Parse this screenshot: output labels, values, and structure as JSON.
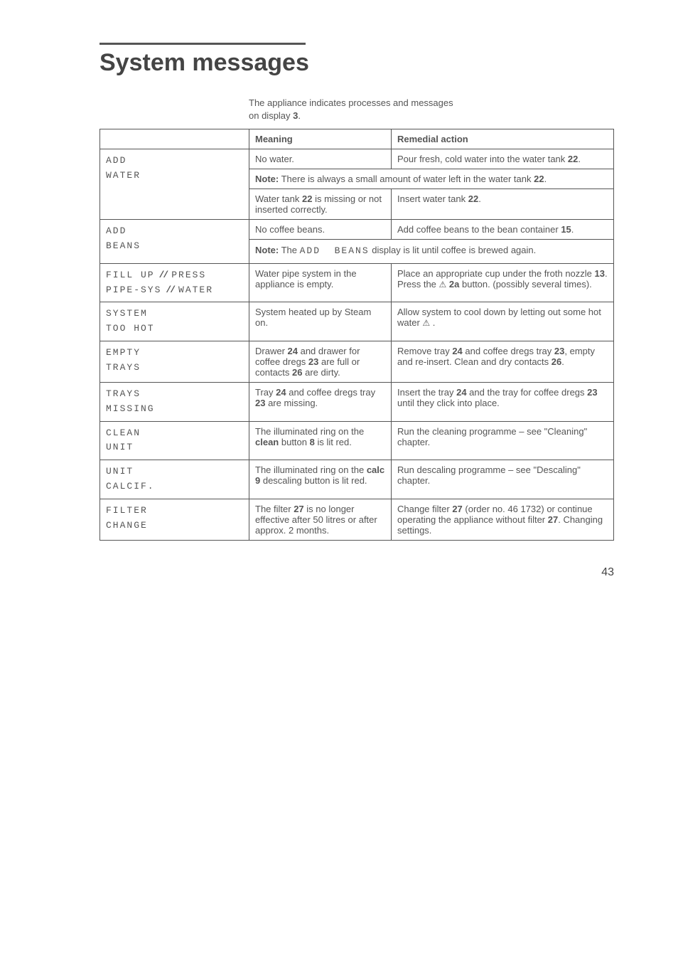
{
  "title": "System messages",
  "intro_line1": "The appliance indicates processes and messages",
  "intro_line2": "on display 3.",
  "headers": {
    "meaning": "Meaning",
    "remedial": "Remedial action"
  },
  "rows": {
    "add_water": {
      "label_l1": "ADD",
      "label_l2": "WATER",
      "r1_meaning": "No water.",
      "r1_remedial": "Pour fresh, cold water into the water tank 22.",
      "note": "Note: There is always a small amount of water left in the water tank 22.",
      "r2_meaning": "Water tank 22 is missing or not inserted correctly.",
      "r2_remedial": "Insert water tank 22."
    },
    "add_beans": {
      "label_l1": "ADD",
      "label_l2": "BEANS",
      "r1_meaning": "No coffee beans.",
      "r1_remedial": "Add coffee beans to the bean container 15.",
      "note_pre": "Note: The ",
      "note_seg": "ADD  BEANS",
      "note_post": " display is lit until coffee is brewed again."
    },
    "fill_pipe": {
      "label_a1": "FILL UP",
      "label_a2": "PIPE-SYS",
      "label_b1": "PRESS",
      "label_b2": "WATER",
      "meaning": "Water pipe system in the appliance is empty.",
      "remedial": "Place an appropriate cup under the froth nozzle 13. Press the   2a button. (possibly several times)."
    },
    "system_hot": {
      "label_l1": "SYSTEM",
      "label_l2": "TOO HOT",
      "meaning": "System heated up by Steam on.",
      "remedial": "Allow system to cool down by letting out some hot water   ."
    },
    "empty_trays": {
      "label_l1": "EMPTY",
      "label_l2": "TRAYS",
      "meaning": "Drawer 24 and drawer for coffee dregs 23 are full or contacts 26 are dirty.",
      "remedial": "Remove tray 24 and coffee dregs tray 23, empty and re-insert. Clean and dry contacts 26."
    },
    "trays_missing": {
      "label_l1": "TRAYS",
      "label_l2": "MISSING",
      "meaning": "Tray 24 and coffee dregs tray 23 are missing.",
      "remedial": "Insert the tray 24 and the tray for coffee dregs 23 until they click into place."
    },
    "clean_unit": {
      "label_l1": "CLEAN",
      "label_l2": "UNIT",
      "meaning": "The illuminated ring on the clean button 8 is lit red.",
      "remedial": "Run the cleaning programme – see \"Cleaning\" chapter."
    },
    "unit_calcif": {
      "label_l1": "UNIT",
      "label_l2": "CALCIF.",
      "meaning": "The illuminated ring on the calc 9 descaling button is lit red.",
      "remedial": "Run descaling programme – see \"Descaling\" chapter."
    },
    "filter_change": {
      "label_l1": "FILTER",
      "label_l2": "CHANGE",
      "meaning": "The filter 27 is no longer effective after 50 litres or after approx. 2 months.",
      "remedial": "Change filter 27 (order no. 46 1732) or continue operating the appliance without filter 27. Changing settings."
    }
  },
  "page_number": "43"
}
